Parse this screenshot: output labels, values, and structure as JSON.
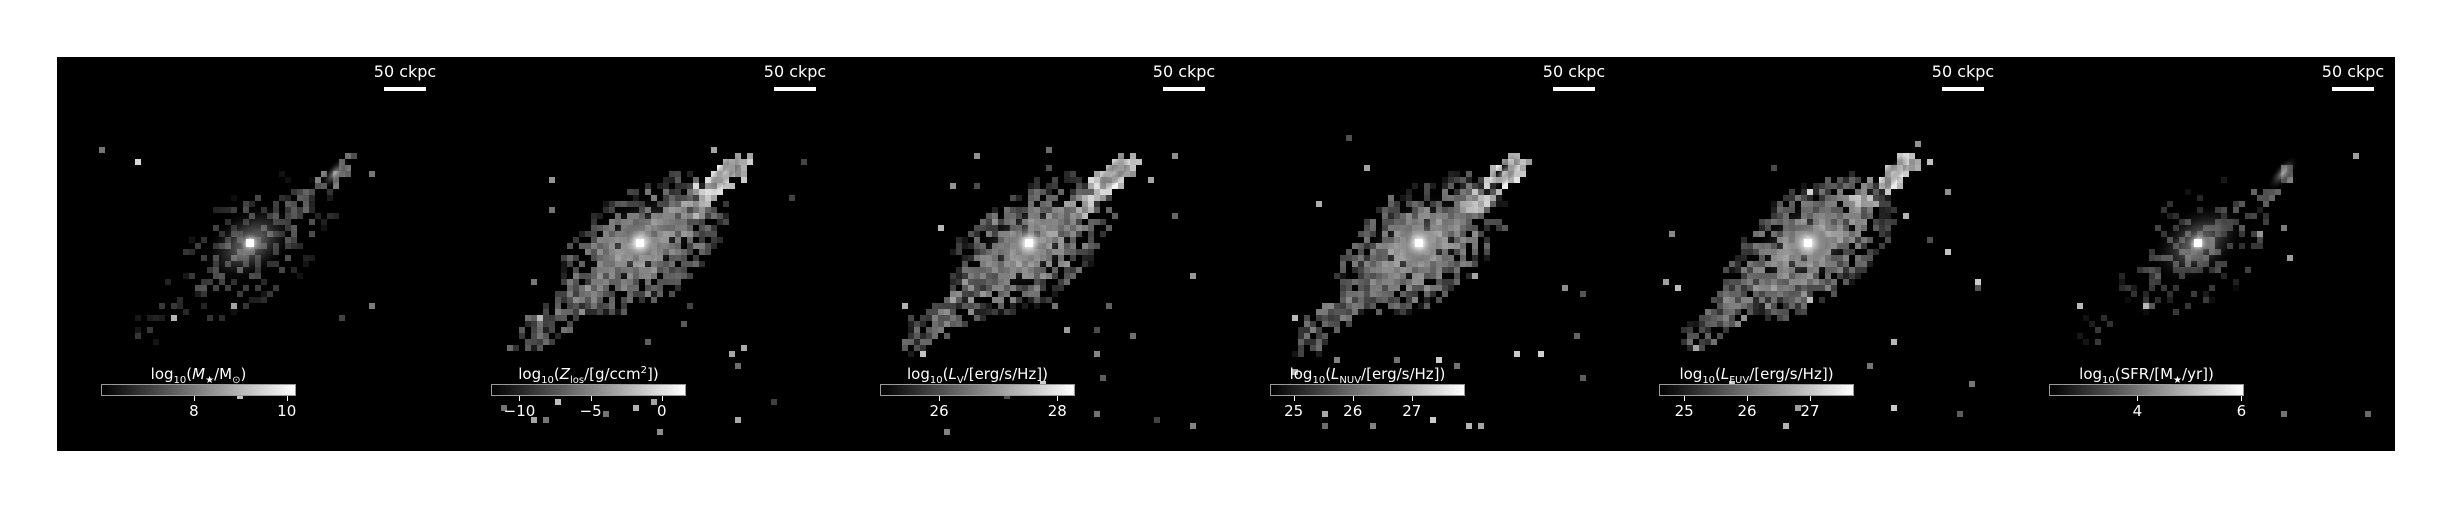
{
  "figure": {
    "panels": [
      {
        "id": "stellar-mass",
        "scalebar": "50 ckpc",
        "colorbar": {
          "prefix": "log",
          "sub": "10",
          "open": "(",
          "quantity": "M",
          "quantity_sub": "★",
          "rest": "/M",
          "rest_sub": "⊙",
          "sup": "",
          "close": ")",
          "range": [
            6,
            10.2
          ],
          "ticks": [
            {
              "value": 8,
              "label": "8"
            },
            {
              "value": 10,
              "label": "10"
            }
          ]
        },
        "map": {
          "core_brightness": 1.0,
          "density": 0.45,
          "mode": "smooth"
        }
      },
      {
        "id": "gas-metallicity",
        "scalebar": "50 ckpc",
        "colorbar": {
          "prefix": "log",
          "sub": "10",
          "open": "(",
          "quantity": "Z",
          "quantity_sub": "los",
          "rest": "/[g/ccm",
          "rest_sub": "",
          "sup": "2",
          "close": "])",
          "range": [
            -12,
            1.7
          ],
          "ticks": [
            {
              "value": -10,
              "label": "−10"
            },
            {
              "value": -5,
              "label": "−5"
            },
            {
              "value": 0,
              "label": "0"
            }
          ]
        },
        "map": {
          "core_brightness": 1.0,
          "density": 0.95,
          "mode": "pixel"
        }
      },
      {
        "id": "v-band-luminosity",
        "scalebar": "50 ckpc",
        "colorbar": {
          "prefix": "log",
          "sub": "10",
          "open": "(",
          "quantity": "L",
          "quantity_sub": "V",
          "rest": "/[erg/s/Hz]",
          "rest_sub": "",
          "sup": "",
          "close": ")",
          "range": [
            25,
            28.3
          ],
          "ticks": [
            {
              "value": 26,
              "label": "26"
            },
            {
              "value": 28,
              "label": "28"
            }
          ]
        },
        "map": {
          "core_brightness": 1.0,
          "density": 0.9,
          "mode": "pixel"
        }
      },
      {
        "id": "nuv-luminosity",
        "scalebar": "50 ckpc",
        "colorbar": {
          "prefix": "log",
          "sub": "10",
          "open": "(",
          "quantity": "L",
          "quantity_sub": "NUV",
          "rest": "/[erg/s/Hz]",
          "rest_sub": "",
          "sup": "",
          "close": ")",
          "range": [
            24.6,
            27.9
          ],
          "ticks": [
            {
              "value": 25,
              "label": "25"
            },
            {
              "value": 26,
              "label": "26"
            },
            {
              "value": 27,
              "label": "27"
            }
          ]
        },
        "map": {
          "core_brightness": 1.0,
          "density": 1.0,
          "mode": "pixel"
        }
      },
      {
        "id": "fuv-luminosity",
        "scalebar": "50 ckpc",
        "colorbar": {
          "prefix": "log",
          "sub": "10",
          "open": "(",
          "quantity": "L",
          "quantity_sub": "FUV",
          "rest": "/[erg/s/Hz]",
          "rest_sub": "",
          "sup": "",
          "close": ")",
          "range": [
            24.6,
            27.7
          ],
          "ticks": [
            {
              "value": 25,
              "label": "25"
            },
            {
              "value": 26,
              "label": "26"
            },
            {
              "value": 27,
              "label": "27"
            }
          ]
        },
        "map": {
          "core_brightness": 1.0,
          "density": 1.0,
          "mode": "pixel"
        }
      },
      {
        "id": "star-formation-rate",
        "scalebar": "50 ckpc",
        "colorbar": {
          "prefix": "log",
          "sub": "10",
          "open": "(",
          "quantity": "SFR/[M",
          "quantity_sub": "★",
          "rest": "/yr]",
          "rest_sub": "",
          "sup": "",
          "close": ")",
          "range": [
            2.3,
            6.05
          ],
          "ticks": [
            {
              "value": 4,
              "label": "4"
            },
            {
              "value": 6,
              "label": "6"
            }
          ]
        },
        "map": {
          "core_brightness": 1.0,
          "density": 0.35,
          "mode": "smooth"
        }
      }
    ],
    "colors": {
      "background": "#000000",
      "page": "#ffffff",
      "text": "#ffffff"
    },
    "colormap": "grayscale"
  }
}
